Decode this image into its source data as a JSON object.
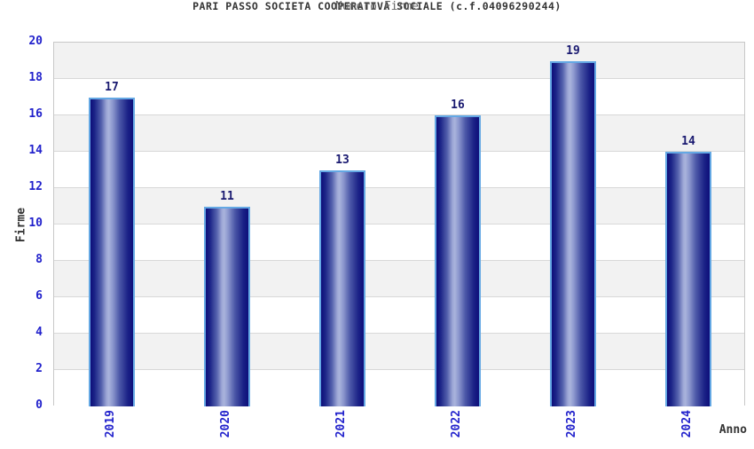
{
  "header": {
    "title": "PARI PASSO SOCIETA COOPERATIVA SOCIALE (c.f.04096290244)",
    "subtitle": "Numero Firme"
  },
  "chart_data": {
    "type": "bar",
    "title": "PARI PASSO SOCIETA COOPERATIVA SOCIALE (c.f.04096290244)",
    "subtitle": "Numero Firme",
    "categories": [
      "2019",
      "2020",
      "2021",
      "2022",
      "2023",
      "2024"
    ],
    "values": [
      17,
      11,
      13,
      16,
      19,
      14
    ],
    "xlabel": "Anno",
    "ylabel": "Firme",
    "ylim": [
      0,
      20
    ],
    "ytick_step": 2,
    "yticks": [
      0,
      2,
      4,
      6,
      8,
      10,
      12,
      14,
      16,
      18,
      20
    ],
    "grid": "alternating-horizontal-bands",
    "legend": "none",
    "value_labels_shown": true,
    "colors": {
      "bar_dark": "#0e0e7a",
      "bar_highlight": "#a9b3dc",
      "bar_border": "#64a8e4",
      "tick_label": "#2222cc",
      "value_label": "#191970",
      "band_gray": "#f2f2f2",
      "band_white": "#ffffff",
      "grid_line": "#d8d8d8",
      "title_color": "#333333",
      "subtitle_color": "#666666",
      "axis_title_color": "#333333",
      "background": "#ffffff"
    }
  }
}
